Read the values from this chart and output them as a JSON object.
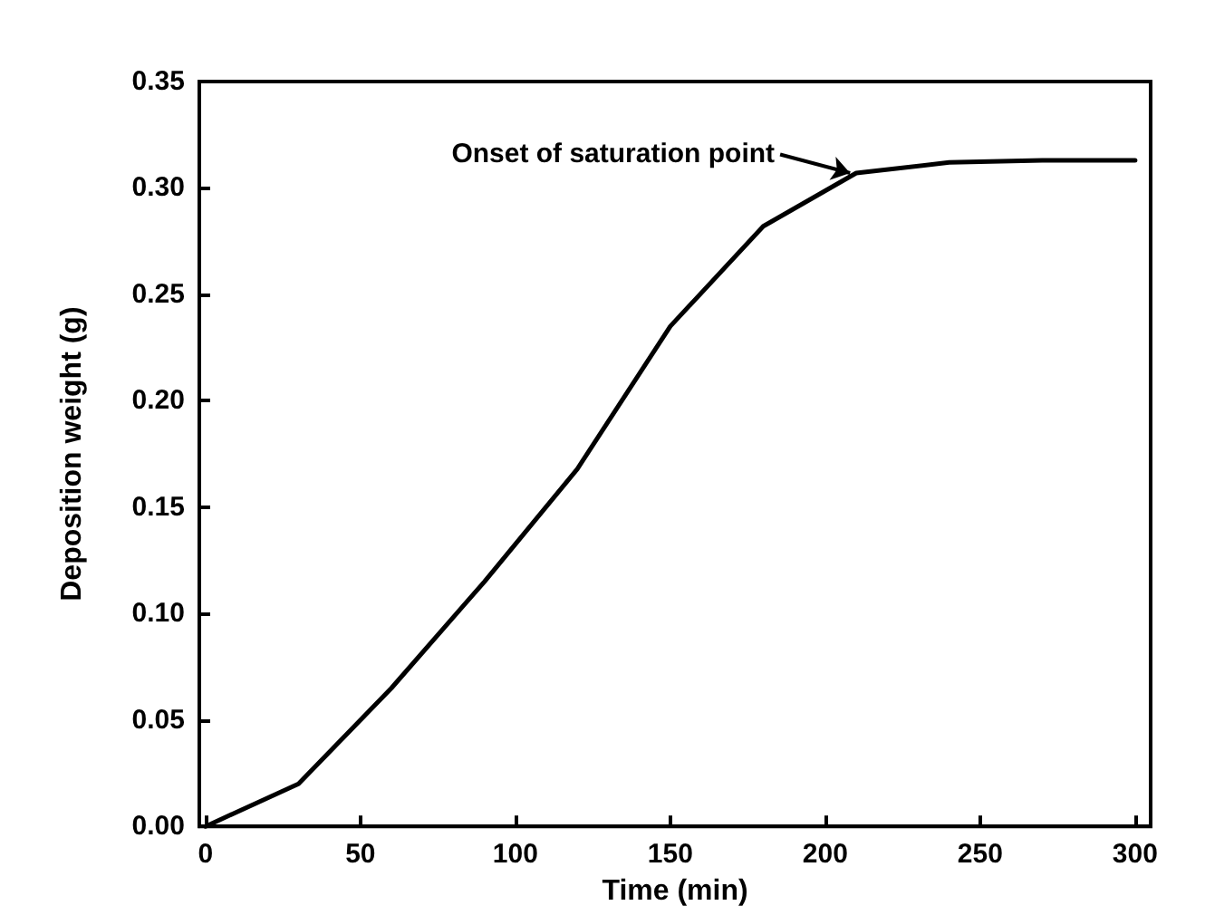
{
  "chart_data": {
    "type": "line",
    "xlabel": "Time (min)",
    "ylabel": "Deposition weight (g)",
    "x": [
      0,
      30,
      60,
      90,
      120,
      150,
      180,
      210,
      240,
      270,
      300
    ],
    "series": [
      {
        "color": "#000000",
        "values": [
          0,
          0.02,
          0.065,
          0.115,
          0.168,
          0.235,
          0.282,
          0.307,
          0.312,
          0.313,
          0.313
        ]
      }
    ],
    "xlim": [
      -2,
      305
    ],
    "xticks": [
      0,
      50,
      100,
      150,
      200,
      250,
      300
    ],
    "ylim": [
      0,
      0.35
    ],
    "yticks": [
      {
        "value": 0,
        "label": "0.00"
      },
      {
        "value": 0.05,
        "label": "0.05"
      },
      {
        "value": 0.1,
        "label": "0.10"
      },
      {
        "value": 0.15,
        "label": "0.15"
      },
      {
        "value": 0.2,
        "label": "0.20"
      },
      {
        "value": 0.25,
        "label": "0.25"
      },
      {
        "value": 0.3,
        "label": "0.30"
      },
      {
        "value": 0.35,
        "label": "0.35"
      }
    ],
    "annotations": [
      {
        "text": "Onset of saturation point",
        "x": 210,
        "y": 0.307
      }
    ],
    "grid": false,
    "marker": "none",
    "line_style": "solid"
  }
}
